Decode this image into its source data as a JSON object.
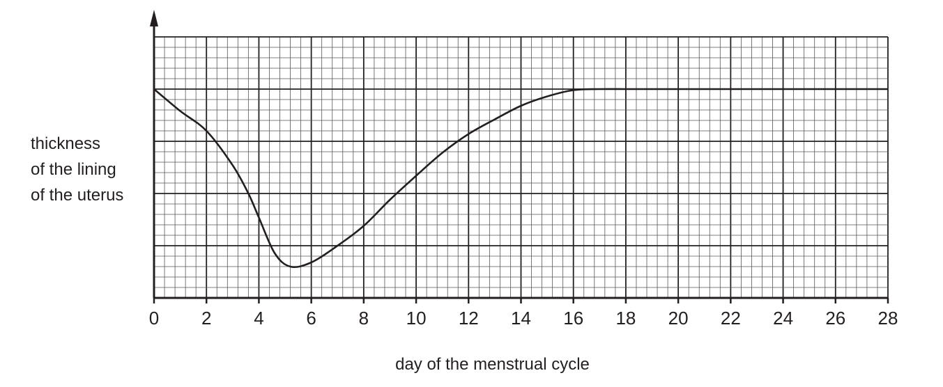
{
  "chart_data": {
    "type": "line",
    "title": "",
    "xlabel": "day of the menstrual cycle",
    "ylabel_lines": [
      "thickness",
      "of the lining",
      "of the uterus"
    ],
    "xlim": [
      0,
      28
    ],
    "ylim": [
      0,
      25
    ],
    "y_units": "grid squares (unlabelled axis)",
    "grid": true,
    "xticks": [
      0,
      2,
      4,
      6,
      8,
      10,
      12,
      14,
      16,
      18,
      20,
      22,
      24,
      26,
      28
    ],
    "series": [
      {
        "name": "thickness of the lining of the uterus",
        "x": [
          0,
          1,
          2,
          3,
          3.6,
          4,
          4.6,
          5.2,
          6,
          7,
          8,
          9,
          10,
          11,
          12,
          13,
          14,
          15,
          16,
          17,
          18,
          20,
          22,
          24,
          26,
          28
        ],
        "y": [
          20,
          17.9,
          16,
          12.7,
          10,
          7.7,
          4.3,
          3.0,
          3.4,
          5,
          6.9,
          9.4,
          11.7,
          13.9,
          15.7,
          17.1,
          18.4,
          19.3,
          19.9,
          20,
          20,
          20,
          20,
          20,
          20,
          20
        ]
      }
    ],
    "colors": {
      "line": "#231f20",
      "grid_major": "#231f20",
      "grid_minor": "#555555"
    }
  }
}
